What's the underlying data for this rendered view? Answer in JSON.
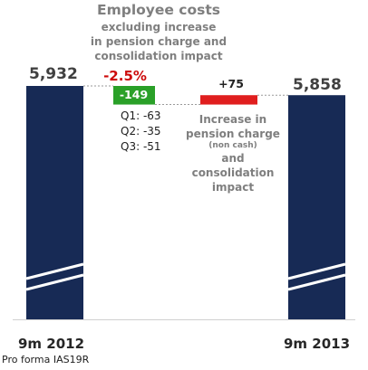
{
  "chart_data": {
    "type": "waterfall",
    "title": "Employee costs",
    "subtitle": [
      "excluding increase",
      "in pension charge and",
      "consolidation impact"
    ],
    "categories": [
      "9m 2012",
      "9m 2013"
    ],
    "start": {
      "label": "9m 2012",
      "value": 5932,
      "value_label": "5,932"
    },
    "end": {
      "label": "9m 2013",
      "value": 5858,
      "value_label": "5,858"
    },
    "steps": [
      {
        "value": -149,
        "value_label": "-149",
        "color": "#2aa028",
        "percent_label": "-2.5%",
        "breakdown": [
          "Q1: -63",
          "Q2: -35",
          "Q3: -51"
        ]
      },
      {
        "value": 75,
        "value_label": "+75",
        "color": "#e01e1e",
        "description": [
          "Increase in",
          "pension charge",
          "(non cash)",
          "and",
          "consolidation",
          "impact"
        ]
      }
    ],
    "axis_break": true,
    "bar_color": "#172a55",
    "footnote": "Pro forma IAS19R"
  }
}
